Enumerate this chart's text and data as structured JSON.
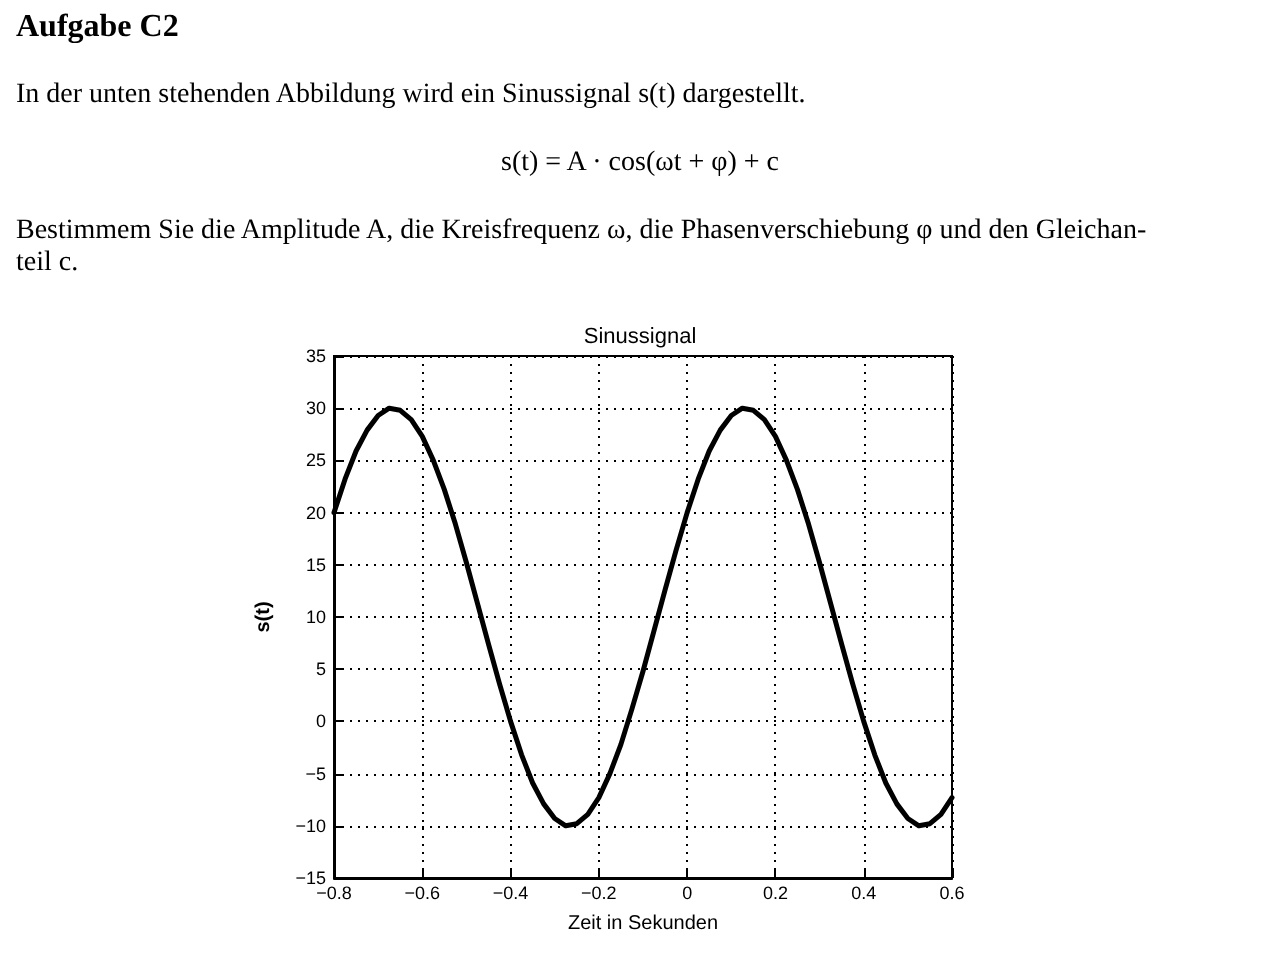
{
  "chart_data": {
    "type": "line",
    "title": "Sinussignal",
    "xlabel": "Zeit in Sekunden",
    "ylabel": "s(t)",
    "annotations": [
      "Aufgabe C2",
      "In der unten stehenden Abbildung wird ein Sinussignal s(t) dargestellt.",
      "s(t) = A · cos(ωt + φ) + c",
      "Bestimmem Sie die Amplitude A, die Kreisfrequenz ω, die Phasenverschiebung φ und den Gleichan-\nteil c."
    ],
    "x": [
      -0.8,
      -0.775,
      -0.75,
      -0.725,
      -0.7,
      -0.675,
      -0.65,
      -0.625,
      -0.6,
      -0.575,
      -0.55,
      -0.525,
      -0.5,
      -0.475,
      -0.45,
      -0.425,
      -0.4,
      -0.375,
      -0.35,
      -0.325,
      -0.3,
      -0.275,
      -0.25,
      -0.225,
      -0.2,
      -0.175,
      -0.15,
      -0.125,
      -0.1,
      -0.075,
      -0.05,
      -0.025,
      0,
      0.025,
      0.05,
      0.075,
      0.1,
      0.125,
      0.15,
      0.175,
      0.2,
      0.225,
      0.25,
      0.275,
      0.3,
      0.325,
      0.35,
      0.375,
      0.4,
      0.425,
      0.45,
      0.475,
      0.5,
      0.525,
      0.55,
      0.575,
      0.6
    ],
    "series": [
      {
        "color": "#000000",
        "values": [
          20,
          23.2,
          25.9,
          27.9,
          29.3,
          30,
          29.8,
          28.9,
          27.3,
          25,
          22.2,
          18.9,
          15.2,
          11.3,
          7.4,
          3.6,
          0,
          -3.2,
          -5.9,
          -7.9,
          -9.3,
          -10,
          -9.8,
          -8.9,
          -7.3,
          -5,
          -2.2,
          1.2,
          4.8,
          8.7,
          12.6,
          16.4,
          20,
          23.2,
          25.9,
          27.9,
          29.3,
          30,
          29.8,
          28.9,
          27.3,
          25,
          22.2,
          18.9,
          15.2,
          11.3,
          7.4,
          3.6,
          0,
          -3.2,
          -5.9,
          -7.9,
          -9.3,
          -10,
          -9.8,
          -8.9,
          -7.3
        ]
      }
    ],
    "xlim": [
      -0.8,
      0.6
    ],
    "xticks": [
      {
        "value": -0.8,
        "label": "−0.8"
      },
      {
        "value": -0.6,
        "label": "−0.6"
      },
      {
        "value": -0.4,
        "label": "−0.4"
      },
      {
        "value": -0.2,
        "label": "−0.2"
      },
      0,
      0.2,
      0.4,
      0.6
    ],
    "ylim": [
      -15,
      35
    ],
    "yticks": [
      {
        "value": -15,
        "label": "−15"
      },
      {
        "value": -10,
        "label": "−10"
      },
      {
        "value": -5,
        "label": "−5"
      },
      0,
      5,
      10,
      15,
      20,
      25,
      30,
      35
    ],
    "grid": true,
    "marker": "none",
    "line_style": "solid"
  }
}
